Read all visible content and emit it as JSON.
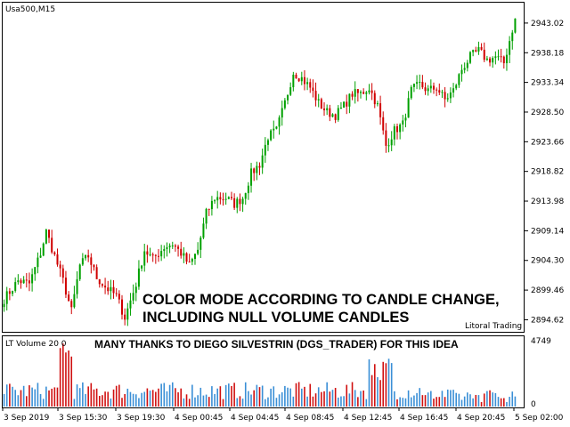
{
  "window": {
    "symbol_label": "Usa500,M15"
  },
  "indicator": {
    "label": "LT Volume 20 0"
  },
  "annotations": {
    "line1": "COLOR MODE ACCORDING TO CANDLE CHANGE,",
    "line2": "INCLUDING NULL VOLUME CANDLES",
    "credit": "Litoral Trading",
    "thanks": "MANY THANKS TO DIEGO SILVESTRIN (DGS_TRADER) FOR THIS IDEA"
  },
  "colors": {
    "up": "#00a000",
    "down": "#d00000",
    "vol_up": "#3a8fd6",
    "vol_down": "#d01010"
  },
  "chart_data": [
    {
      "type": "candlestick",
      "title": "Usa500,M15",
      "ylim": [
        2892.8,
        2946.2
      ],
      "yticks": [
        "2943.02",
        "2938.18",
        "2933.34",
        "2928.50",
        "2923.66",
        "2918.82",
        "2913.98",
        "2909.14",
        "2904.30",
        "2899.46",
        "2894.62"
      ],
      "xticks": [
        "3 Sep 2019",
        "3 Sep 15:30",
        "3 Sep 19:30",
        "4 Sep 00:45",
        "4 Sep 04:45",
        "4 Sep 08:45",
        "4 Sep 12:45",
        "4 Sep 16:45",
        "4 Sep 20:45",
        "5 Sep 02:00"
      ],
      "close_path": [
        [
          0,
          2898.0
        ],
        [
          5,
          2901.0
        ],
        [
          9,
          2900.5
        ],
        [
          13,
          2905.5
        ],
        [
          15,
          2909.0
        ],
        [
          18,
          2905.0
        ],
        [
          21,
          2901.0
        ],
        [
          24,
          2896.0
        ],
        [
          27,
          2903.5
        ],
        [
          30,
          2905.0
        ],
        [
          33,
          2901.5
        ],
        [
          36,
          2900.0
        ],
        [
          40,
          2898.5
        ],
        [
          43,
          2895.0
        ],
        [
          47,
          2900.5
        ],
        [
          50,
          2906.0
        ],
        [
          53,
          2904.5
        ],
        [
          57,
          2906.5
        ],
        [
          60,
          2907.0
        ],
        [
          63,
          2905.5
        ],
        [
          66,
          2903.5
        ],
        [
          69,
          2906.0
        ],
        [
          72,
          2912.0
        ],
        [
          75,
          2914.5
        ],
        [
          79,
          2914.5
        ],
        [
          82,
          2913.5
        ],
        [
          85,
          2914.5
        ],
        [
          88,
          2918.5
        ],
        [
          91,
          2920.0
        ],
        [
          94,
          2924.5
        ],
        [
          97,
          2925.5
        ],
        [
          100,
          2930.0
        ],
        [
          103,
          2935.0
        ],
        [
          106,
          2934.0
        ],
        [
          109,
          2932.5
        ],
        [
          112,
          2930.0
        ],
        [
          115,
          2928.5
        ],
        [
          118,
          2928.0
        ],
        [
          121,
          2929.5
        ],
        [
          124,
          2931.5
        ],
        [
          127,
          2931.5
        ],
        [
          130,
          2932.5
        ],
        [
          133,
          2929.5
        ],
        [
          136,
          2923.0
        ],
        [
          139,
          2925.5
        ],
        [
          142,
          2926.5
        ],
        [
          145,
          2932.0
        ],
        [
          148,
          2933.0
        ],
        [
          151,
          2932.0
        ],
        [
          154,
          2932.5
        ],
        [
          157,
          2930.5
        ],
        [
          160,
          2932.0
        ],
        [
          163,
          2935.5
        ],
        [
          166,
          2937.5
        ],
        [
          169,
          2938.5
        ],
        [
          172,
          2937.0
        ],
        [
          175,
          2937.5
        ],
        [
          178,
          2936.5
        ],
        [
          181,
          2942.0
        ],
        [
          182,
          2943.5
        ]
      ],
      "volume": {
        "label": "LT Volume 20 0",
        "ylim": [
          0,
          4749
        ],
        "yticks": [
          "4749",
          "0"
        ]
      }
    }
  ]
}
